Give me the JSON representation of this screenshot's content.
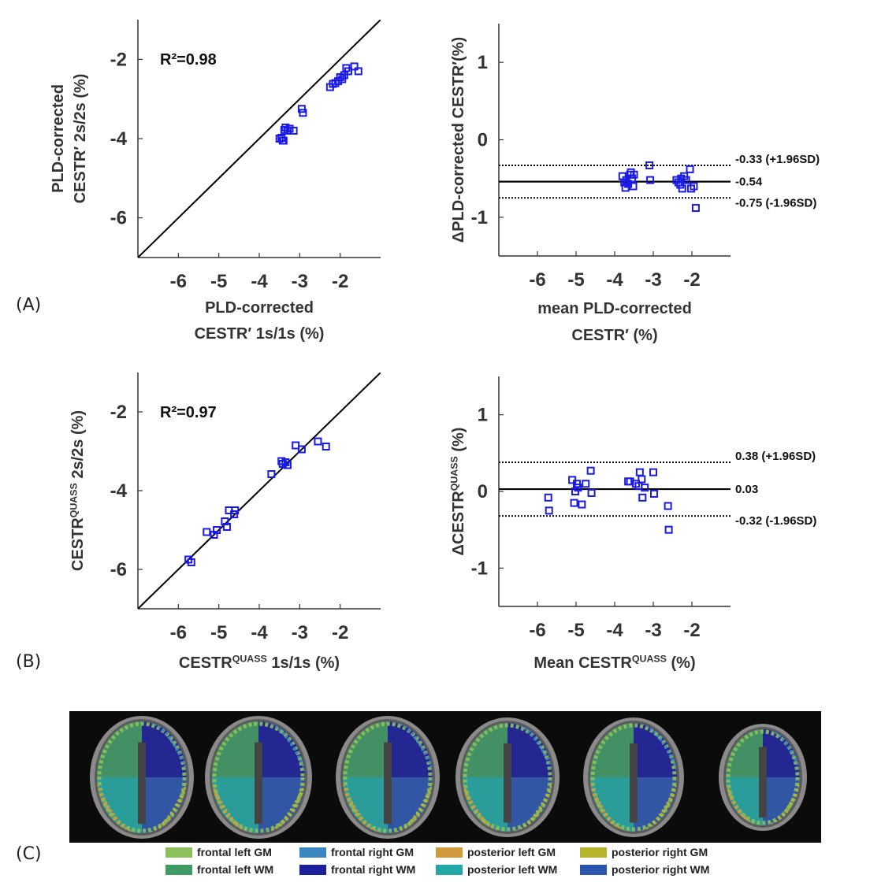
{
  "panel_labels": [
    "(A)",
    "(B)",
    "(C)"
  ],
  "chart_data": [
    {
      "id": "A-left",
      "type": "scatter",
      "title": "",
      "xlabel_lines": [
        "PLD-corrected",
        "CESTR′ 1s/1s (%)"
      ],
      "ylabel_lines": [
        "PLD-corrected",
        "CESTR′ 2s/2s (%)"
      ],
      "xlim": [
        -7,
        -1
      ],
      "ylim": [
        -7,
        -1
      ],
      "xticks": [
        -6,
        -5,
        -4,
        -3,
        -2
      ],
      "yticks": [
        -6,
        -4,
        -2
      ],
      "annotation": "R²=0.98",
      "identity_line": true,
      "x": [
        -3.5,
        -3.45,
        -3.42,
        -3.4,
        -3.38,
        -3.35,
        -3.3,
        -3.25,
        -3.15,
        -2.95,
        -2.92,
        -2.25,
        -2.18,
        -2.12,
        -2.05,
        -2.0,
        -1.95,
        -1.9,
        -1.85,
        -1.8,
        -1.65,
        -1.55
      ],
      "y": [
        -4.0,
        -3.98,
        -4.05,
        -4.05,
        -3.78,
        -3.72,
        -3.8,
        -3.75,
        -3.8,
        -3.25,
        -3.35,
        -2.7,
        -2.62,
        -2.6,
        -2.55,
        -2.45,
        -2.5,
        -2.4,
        -2.22,
        -2.3,
        -2.18,
        -2.3
      ]
    },
    {
      "id": "A-right",
      "type": "scatter",
      "title": "",
      "xlabel_lines": [
        "mean PLD-corrected",
        "CESTR′ (%)"
      ],
      "ylabel_lines": [
        "ΔPLD-corrected CESTR′(%)"
      ],
      "xlim": [
        -7,
        -1
      ],
      "ylim": [
        -1.5,
        1.5
      ],
      "xticks": [
        -6,
        -5,
        -4,
        -3,
        -2
      ],
      "yticks": [
        -1,
        0,
        1
      ],
      "mean_line": -0.54,
      "upper_loa": -0.33,
      "lower_loa": -0.75,
      "mean_label": "-0.54",
      "upper_label": "-0.33 (+1.96SD)",
      "lower_label": "-0.75 (-1.96SD)",
      "x": [
        -3.8,
        -3.75,
        -3.72,
        -3.7,
        -3.65,
        -3.6,
        -3.58,
        -3.55,
        -3.52,
        -3.5,
        -3.1,
        -3.08,
        -2.4,
        -2.35,
        -2.3,
        -2.28,
        -2.25,
        -2.2,
        -2.15,
        -2.05,
        -2.02,
        -1.95,
        -1.9
      ],
      "y": [
        -0.47,
        -0.55,
        -0.62,
        -0.52,
        -0.57,
        -0.45,
        -0.42,
        -0.5,
        -0.6,
        -0.45,
        -0.33,
        -0.52,
        -0.52,
        -0.55,
        -0.58,
        -0.5,
        -0.63,
        -0.47,
        -0.52,
        -0.38,
        -0.63,
        -0.6,
        -0.88
      ]
    },
    {
      "id": "B-left",
      "type": "scatter",
      "title": "",
      "xlabel_lines": [
        "CESTR^QUASS 1s/1s (%)"
      ],
      "ylabel_lines": [
        "CESTR^QUASS 2s/2s (%)"
      ],
      "xlim": [
        -7,
        -1
      ],
      "ylim": [
        -7,
        -1
      ],
      "xticks": [
        -6,
        -5,
        -4,
        -3,
        -2
      ],
      "yticks": [
        -6,
        -4,
        -2
      ],
      "annotation": "R²=0.97",
      "identity_line": true,
      "x": [
        -5.75,
        -5.68,
        -5.3,
        -5.12,
        -5.05,
        -4.85,
        -4.8,
        -4.75,
        -4.6,
        -4.62,
        -3.7,
        -3.45,
        -3.42,
        -3.35,
        -3.3,
        -3.1,
        -2.95,
        -2.55,
        -2.35
      ],
      "y": [
        -5.75,
        -5.82,
        -5.05,
        -5.12,
        -5.0,
        -4.78,
        -4.92,
        -4.5,
        -4.5,
        -4.6,
        -3.58,
        -3.25,
        -3.32,
        -3.28,
        -3.35,
        -2.85,
        -2.95,
        -2.75,
        -2.88
      ]
    },
    {
      "id": "B-right",
      "type": "scatter",
      "title": "",
      "xlabel_lines": [
        "Mean CESTR^QUASS (%)"
      ],
      "ylabel_lines": [
        "ΔCESTR^QUASS (%)"
      ],
      "xlim": [
        -7,
        -1
      ],
      "ylim": [
        -1.5,
        1.5
      ],
      "xticks": [
        -6,
        -5,
        -4,
        -3,
        -2
      ],
      "yticks": [
        -1,
        0,
        1
      ],
      "mean_line": 0.03,
      "upper_loa": 0.38,
      "lower_loa": -0.32,
      "mean_label": "0.03",
      "upper_label": "0.38 (+1.96SD)",
      "lower_label": "-0.32 (-1.96SD)",
      "x": [
        -5.72,
        -5.7,
        -5.1,
        -5.05,
        -5.02,
        -4.98,
        -4.95,
        -4.85,
        -4.75,
        -4.62,
        -4.6,
        -3.65,
        -3.6,
        -3.45,
        -3.38,
        -3.35,
        -3.3,
        -3.28,
        -3.22,
        -3.0,
        -2.98,
        -2.62,
        -2.6
      ],
      "y": [
        -0.08,
        -0.25,
        0.15,
        -0.15,
        0.0,
        0.1,
        0.05,
        -0.17,
        0.1,
        0.27,
        -0.02,
        0.13,
        0.13,
        0.1,
        0.07,
        0.25,
        0.16,
        -0.08,
        0.05,
        0.25,
        -0.03,
        -0.19,
        -0.5
      ]
    }
  ],
  "legend": [
    {
      "label": "frontal left GM",
      "color": "#8cc05a"
    },
    {
      "label": "frontal left WM",
      "color": "#3f9a66"
    },
    {
      "label": "frontal right GM",
      "color": "#3a86c0"
    },
    {
      "label": "frontal right WM",
      "color": "#1b1f9c"
    },
    {
      "label": "posterior left GM",
      "color": "#d19a3a"
    },
    {
      "label": "posterior left WM",
      "color": "#22a8a6"
    },
    {
      "label": "posterior right GM",
      "color": "#b6b42a"
    },
    {
      "label": "posterior right WM",
      "color": "#2a56b0"
    }
  ],
  "colors": {
    "marker": "#1a1ae6",
    "axis": "#333333",
    "text": "#333333"
  }
}
